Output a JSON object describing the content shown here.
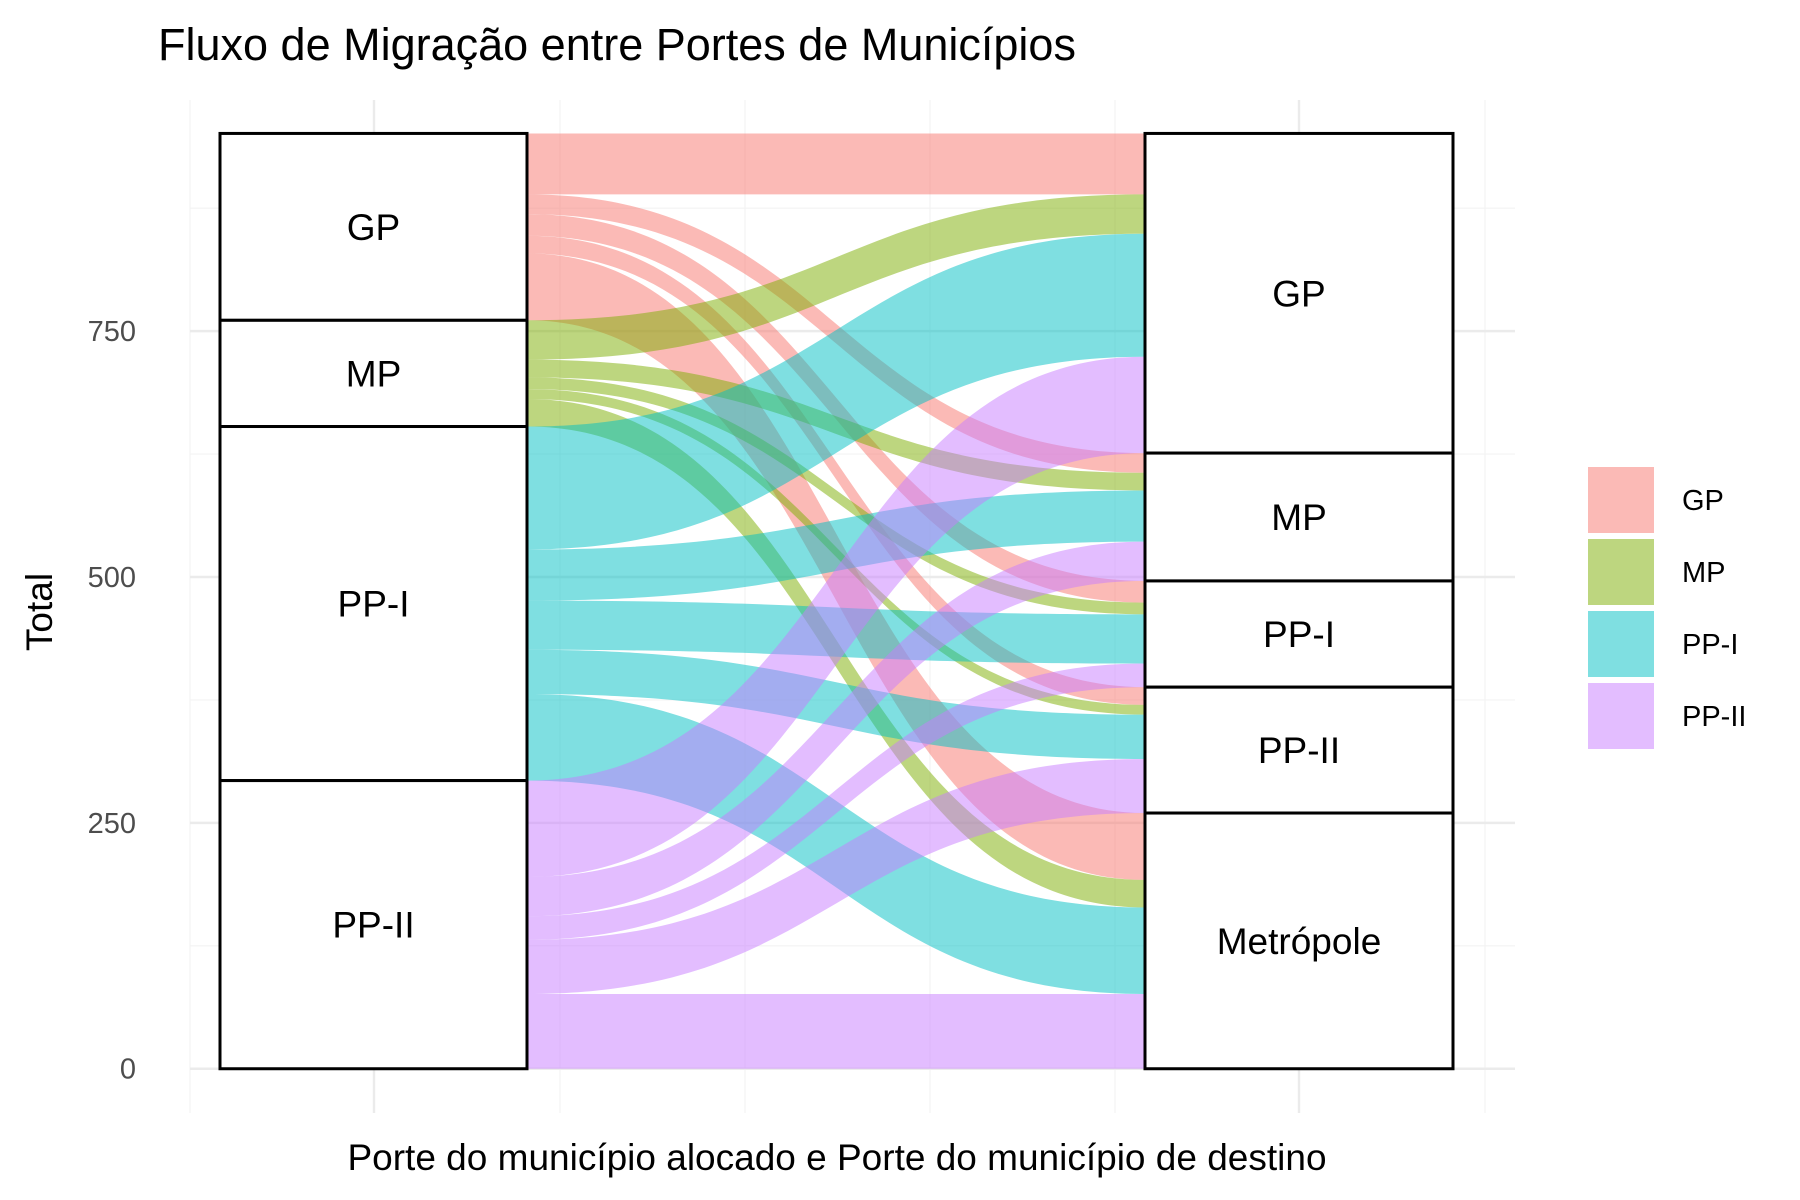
{
  "chart_data": {
    "type": "alluvial",
    "title": "Fluxo de Migração entre Portes de Municípios",
    "xlabel": "Porte do município alocado e Porte do município de destino",
    "ylabel": "Total",
    "ylim": [
      -45,
      985
    ],
    "yticks": [
      0,
      250,
      500,
      750
    ],
    "tick_labels": [
      "0",
      "250",
      "500",
      "750"
    ],
    "axes": [
      "Porte do município alocado",
      "Porte do município de destino"
    ],
    "grid": true,
    "legend": {
      "position": "right",
      "entries": [
        {
          "name": "GP",
          "color": "#F8766D"
        },
        {
          "name": "MP",
          "color": "#7CAE00"
        },
        {
          "name": "PP-I",
          "color": "#00BFC4"
        },
        {
          "name": "PP-II",
          "color": "#C77CFF"
        }
      ]
    },
    "left_strata": [
      {
        "label": "GP",
        "total": 190
      },
      {
        "label": "MP",
        "total": 108
      },
      {
        "label": "PP-I",
        "total": 360
      },
      {
        "label": "PP-II",
        "total": 293
      }
    ],
    "right_strata": [
      {
        "label": "GP",
        "total": 325
      },
      {
        "label": "MP",
        "total": 130
      },
      {
        "label": "PP-I",
        "total": 108
      },
      {
        "label": "PP-II",
        "total": 128
      },
      {
        "label": "Metrópole",
        "total": 260
      }
    ],
    "flows": [
      {
        "from": "GP",
        "to": "GP",
        "value": 62
      },
      {
        "from": "GP",
        "to": "MP",
        "value": 20
      },
      {
        "from": "GP",
        "to": "PP-I",
        "value": 22
      },
      {
        "from": "GP",
        "to": "PP-II",
        "value": 18
      },
      {
        "from": "GP",
        "to": "Metrópole",
        "value": 68
      },
      {
        "from": "MP",
        "to": "GP",
        "value": 40
      },
      {
        "from": "MP",
        "to": "MP",
        "value": 18
      },
      {
        "from": "MP",
        "to": "PP-I",
        "value": 12
      },
      {
        "from": "MP",
        "to": "PP-II",
        "value": 10
      },
      {
        "from": "MP",
        "to": "Metrópole",
        "value": 28
      },
      {
        "from": "PP-I",
        "to": "GP",
        "value": 125
      },
      {
        "from": "PP-I",
        "to": "MP",
        "value": 52
      },
      {
        "from": "PP-I",
        "to": "PP-I",
        "value": 50
      },
      {
        "from": "PP-I",
        "to": "PP-II",
        "value": 45
      },
      {
        "from": "PP-I",
        "to": "Metrópole",
        "value": 88
      },
      {
        "from": "PP-II",
        "to": "GP",
        "value": 98
      },
      {
        "from": "PP-II",
        "to": "MP",
        "value": 40
      },
      {
        "from": "PP-II",
        "to": "PP-I",
        "value": 24
      },
      {
        "from": "PP-II",
        "to": "PP-II",
        "value": 55
      },
      {
        "from": "PP-II",
        "to": "Metrópole",
        "value": 76
      }
    ]
  }
}
